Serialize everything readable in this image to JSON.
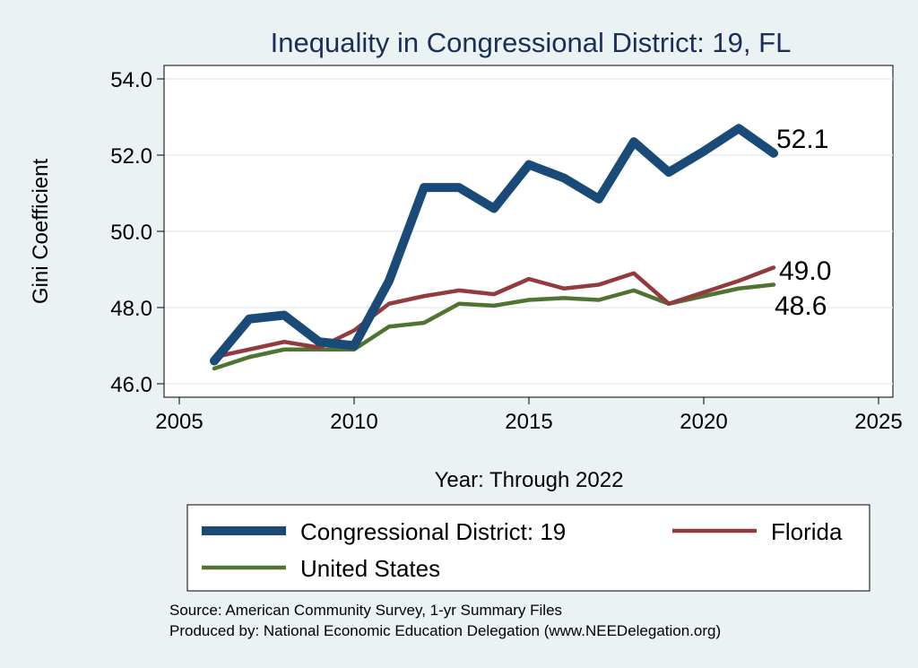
{
  "chart_data": {
    "type": "line",
    "title": "Inequality in Congressional District:  19, FL",
    "xlabel": "Year: Through 2022",
    "ylabel": "Gini Coefficient",
    "xlim": [
      2005,
      2025
    ],
    "ylim": [
      46.0,
      54.0
    ],
    "x_ticks": [
      "2005",
      "2010",
      "2015",
      "2020",
      "2025"
    ],
    "y_ticks": [
      "46.0",
      "48.0",
      "50.0",
      "52.0",
      "54.0"
    ],
    "grid": true,
    "legend_position": "bottom",
    "series": [
      {
        "name": "Congressional District:  19",
        "color": "#1a4a78",
        "x": [
          2006,
          2007,
          2008,
          2009,
          2010,
          2011,
          2012,
          2013,
          2014,
          2015,
          2016,
          2017,
          2018,
          2019,
          2020,
          2021,
          2022
        ],
        "values": [
          46.6,
          47.7,
          47.8,
          47.1,
          47.0,
          48.7,
          51.15,
          51.15,
          50.6,
          51.75,
          51.4,
          50.85,
          52.35,
          51.55,
          52.1,
          52.7,
          52.05
        ],
        "end_label": "52.1"
      },
      {
        "name": "Florida",
        "color": "#933a3f",
        "x": [
          2006,
          2007,
          2008,
          2009,
          2010,
          2011,
          2012,
          2013,
          2014,
          2015,
          2016,
          2017,
          2018,
          2019,
          2020,
          2021,
          2022
        ],
        "values": [
          46.7,
          46.9,
          47.1,
          46.95,
          47.4,
          48.1,
          48.3,
          48.45,
          48.35,
          48.75,
          48.5,
          48.6,
          48.9,
          48.1,
          48.4,
          48.7,
          49.05
        ],
        "end_label": "49.0"
      },
      {
        "name": "United States",
        "color": "#4f7431",
        "x": [
          2006,
          2007,
          2008,
          2009,
          2010,
          2011,
          2012,
          2013,
          2014,
          2015,
          2016,
          2017,
          2018,
          2019,
          2020,
          2021,
          2022
        ],
        "values": [
          46.4,
          46.7,
          46.9,
          46.9,
          46.9,
          47.5,
          47.6,
          48.1,
          48.05,
          48.2,
          48.25,
          48.2,
          48.45,
          48.1,
          48.3,
          48.5,
          48.6
        ],
        "end_label": "48.6"
      }
    ]
  },
  "footer": {
    "source": "Source: American Community Survey, 1-yr Summary Files",
    "produced_by": "Produced by: National Economic Education Delegation (www.NEEDelegation.org)"
  }
}
